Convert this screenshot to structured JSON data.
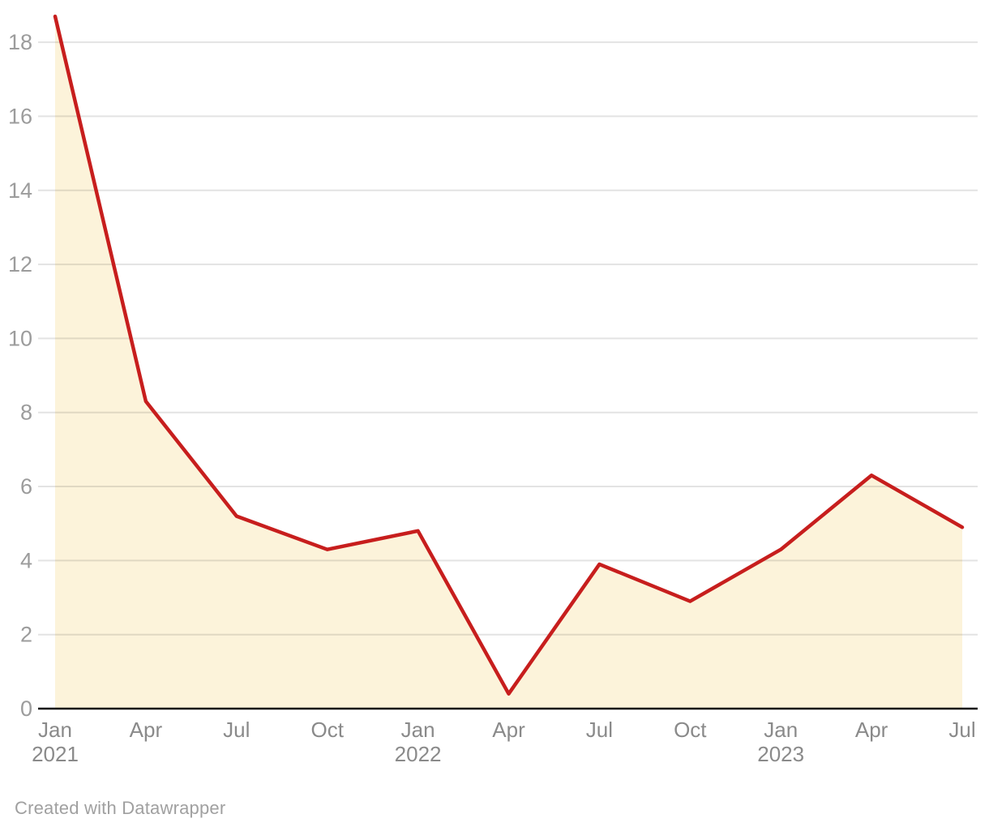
{
  "attribution": "Created with Datawrapper",
  "colors": {
    "line": "#c71e1d",
    "area_fill": "#fcf3da",
    "grid": "rgba(0,0,0,0.11)",
    "axis_line": "#0d0d0d",
    "y_label": "#9c9c9c",
    "x_label": "#8a8a8a",
    "attribution": "#a0a0a0",
    "background": "#ffffff"
  },
  "chart_data": {
    "type": "area",
    "title": "",
    "xlabel": "",
    "ylabel": "",
    "x": [
      "Jan 2021",
      "Apr 2021",
      "Jul 2021",
      "Oct 2021",
      "Jan 2022",
      "Apr 2022",
      "Jul 2022",
      "Oct 2022",
      "Jan 2023",
      "Apr 2023",
      "Jul 2023"
    ],
    "values": [
      18.7,
      8.3,
      5.2,
      4.3,
      4.8,
      0.4,
      3.9,
      2.9,
      4.3,
      6.3,
      4.9
    ],
    "ylim": [
      0,
      18.8
    ],
    "y_ticks": [
      0,
      2,
      4,
      6,
      8,
      10,
      12,
      14,
      16,
      18
    ],
    "x_ticks": [
      {
        "month": "Jan",
        "year": "2021"
      },
      {
        "month": "Apr"
      },
      {
        "month": "Jul"
      },
      {
        "month": "Oct"
      },
      {
        "month": "Jan",
        "year": "2022"
      },
      {
        "month": "Apr"
      },
      {
        "month": "Jul"
      },
      {
        "month": "Oct"
      },
      {
        "month": "Jan",
        "year": "2023"
      },
      {
        "month": "Apr"
      },
      {
        "month": "Jul"
      }
    ],
    "grid": "horizontal",
    "legend": "none"
  }
}
